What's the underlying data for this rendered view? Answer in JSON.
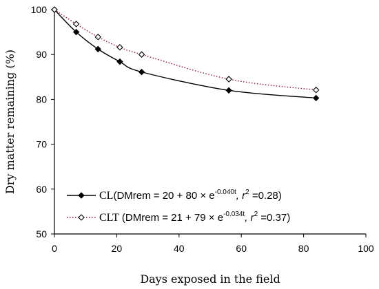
{
  "chart_data": {
    "type": "line",
    "title": "",
    "xlabel": "Days exposed in the field",
    "ylabel": "Dry matter remaining (%)",
    "xlim": [
      0,
      100
    ],
    "ylim": [
      50,
      100
    ],
    "x_ticks": [
      0,
      20,
      40,
      60,
      80,
      100
    ],
    "y_ticks": [
      50,
      60,
      70,
      80,
      90,
      100
    ],
    "grid": false,
    "legend_position": "bottom-left",
    "series": [
      {
        "name": "CL",
        "marker": "filled-diamond",
        "line_style": "solid",
        "color": "#000000",
        "x": [
          0,
          7,
          14,
          21,
          28,
          56,
          84
        ],
        "y": [
          100,
          95,
          91.2,
          88.4,
          86.1,
          82,
          80.3
        ],
        "legend": {
          "name": "CL",
          "eq_prefix": "(DMrem = 20 + 80 × e",
          "exponent": "-0.040t",
          "eq_mid": ", r",
          "r2_sup": "2",
          "eq_suffix": " =0.28)"
        }
      },
      {
        "name": "CLT",
        "marker": "open-diamond",
        "line_style": "dotted",
        "color": "#8b1a2b",
        "x": [
          0,
          7,
          14,
          21,
          28,
          56,
          84
        ],
        "y": [
          100,
          96.8,
          93.9,
          91.6,
          90,
          84.5,
          82.1
        ],
        "legend": {
          "name": "CLT",
          "eq_prefix": " (DMrem = 21 + 79 × e",
          "exponent": "-0.034t",
          "eq_mid": ", r",
          "r2_sup": "2",
          "eq_suffix": " =0.37)"
        }
      }
    ]
  }
}
